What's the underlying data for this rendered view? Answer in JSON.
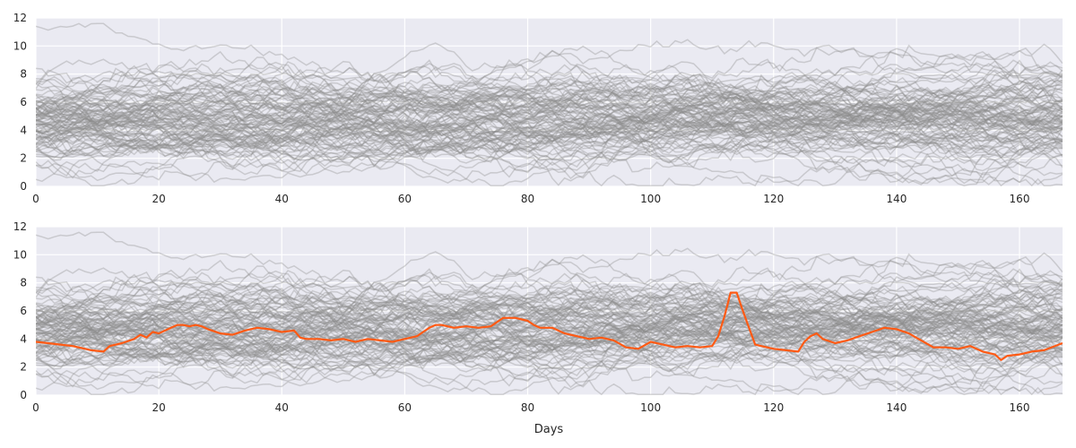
{
  "chart_data": [
    {
      "type": "line",
      "panel": "top",
      "xlim": [
        0,
        167
      ],
      "ylim": [
        0,
        12
      ],
      "xticks": [
        0,
        20,
        40,
        60,
        80,
        100,
        120,
        140,
        160
      ],
      "yticks": [
        0,
        2,
        4,
        6,
        8,
        10,
        12
      ],
      "xlabel": "",
      "ylabel": "",
      "grid": true,
      "background_series": {
        "count": 100,
        "description_of_values": "approximately 100 random-walk series, mean about 5, spread mostly between 2 and 8, extremes 0 to 11.5",
        "color": "#8c8c8c",
        "alpha": 0.35
      }
    },
    {
      "type": "line",
      "panel": "bottom",
      "xlim": [
        0,
        167
      ],
      "ylim": [
        0,
        12
      ],
      "xticks": [
        0,
        20,
        40,
        60,
        80,
        100,
        120,
        140,
        160
      ],
      "yticks": [
        0,
        2,
        4,
        6,
        8,
        10,
        12
      ],
      "xlabel": "Days",
      "ylabel": "",
      "grid": true,
      "background_series": {
        "count": 100,
        "color": "#8c8c8c",
        "alpha": 0.35
      },
      "highlight_series": {
        "color": "#ff5a14",
        "x": [
          0,
          2,
          4,
          6,
          8,
          9,
          11,
          12,
          14,
          16,
          17,
          18,
          19,
          20,
          21,
          22,
          23,
          24,
          25,
          26,
          27,
          28,
          30,
          32,
          34,
          36,
          38,
          40,
          42,
          43,
          44,
          46,
          48,
          50,
          52,
          54,
          56,
          58,
          60,
          62,
          63,
          64,
          65,
          66,
          68,
          70,
          72,
          74,
          76,
          78,
          80,
          81,
          82,
          84,
          86,
          88,
          90,
          92,
          94,
          96,
          98,
          100,
          102,
          104,
          106,
          108,
          110,
          111,
          112,
          113,
          114,
          115,
          116,
          117,
          118,
          120,
          122,
          124,
          125,
          126,
          127,
          128,
          130,
          132,
          134,
          136,
          138,
          140,
          142,
          144,
          146,
          148,
          150,
          152,
          154,
          156,
          157,
          158,
          160,
          162,
          164,
          167
        ],
        "y": [
          3.8,
          3.7,
          3.6,
          3.5,
          3.3,
          3.2,
          3.1,
          3.5,
          3.7,
          4.0,
          4.3,
          4.1,
          4.5,
          4.4,
          4.6,
          4.8,
          5.0,
          5.0,
          4.9,
          5.0,
          4.9,
          4.7,
          4.4,
          4.3,
          4.6,
          4.8,
          4.7,
          4.5,
          4.6,
          4.1,
          4.0,
          4.0,
          3.9,
          4.0,
          3.8,
          4.0,
          3.9,
          3.8,
          4.0,
          4.2,
          4.5,
          4.8,
          5.0,
          5.0,
          4.8,
          4.9,
          4.8,
          4.9,
          5.5,
          5.5,
          5.3,
          5.0,
          4.8,
          4.8,
          4.4,
          4.2,
          4.0,
          4.1,
          3.9,
          3.4,
          3.3,
          3.8,
          3.6,
          3.4,
          3.5,
          3.4,
          3.5,
          4.2,
          5.6,
          7.3,
          7.3,
          6.0,
          4.8,
          3.6,
          3.5,
          3.3,
          3.2,
          3.1,
          3.8,
          4.2,
          4.4,
          4.0,
          3.7,
          3.9,
          4.2,
          4.5,
          4.8,
          4.7,
          4.4,
          3.9,
          3.4,
          3.4,
          3.3,
          3.5,
          3.1,
          2.9,
          2.5,
          2.8,
          2.9,
          3.1,
          3.2,
          3.7
        ]
      }
    }
  ]
}
